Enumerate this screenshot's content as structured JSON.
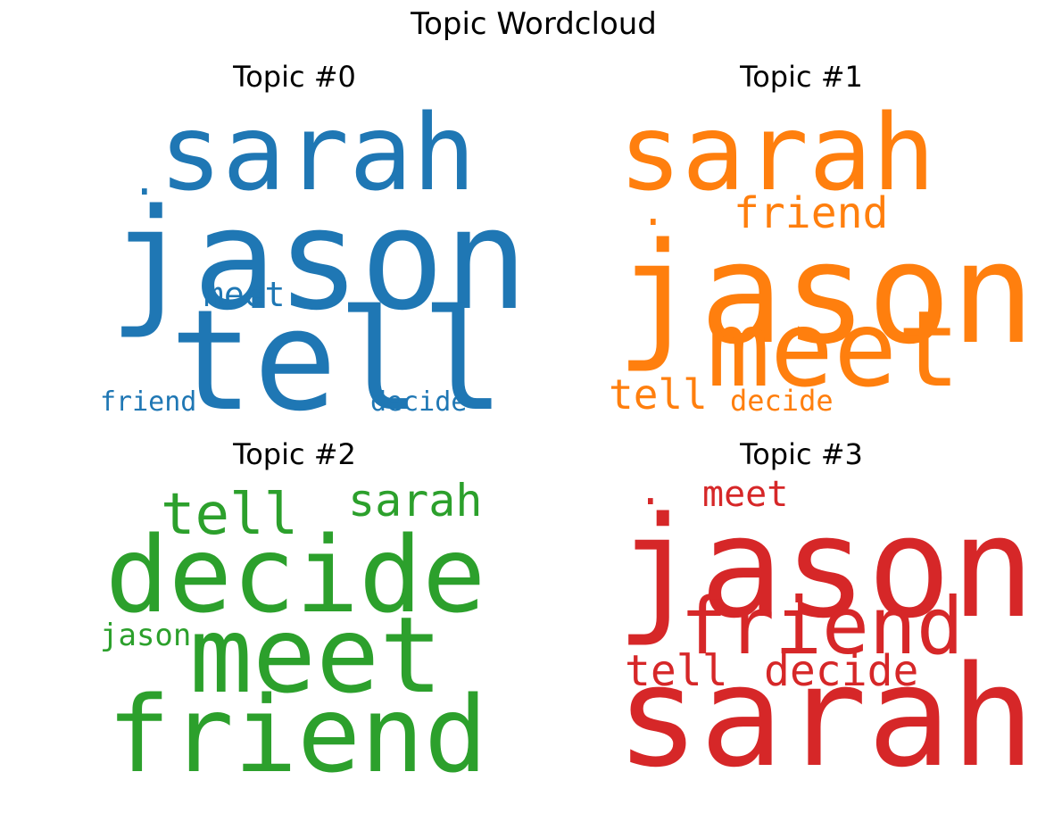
{
  "title": "Topic Wordcloud",
  "chart_data": [
    {
      "type": "wordcloud",
      "title": "Topic #0",
      "color": "#1f77b4",
      "words": [
        {
          "text": "sarah"
        },
        {
          "text": "jason"
        },
        {
          "text": "tell"
        },
        {
          "text": "meet"
        },
        {
          "text": "friend"
        },
        {
          "text": "decide"
        },
        {
          "text": "."
        }
      ]
    },
    {
      "type": "wordcloud",
      "title": "Topic #1",
      "color": "#ff7f0e",
      "words": [
        {
          "text": "sarah"
        },
        {
          "text": "friend"
        },
        {
          "text": "jason"
        },
        {
          "text": "meet"
        },
        {
          "text": "tell"
        },
        {
          "text": "decide"
        },
        {
          "text": "."
        }
      ]
    },
    {
      "type": "wordcloud",
      "title": "Topic #2",
      "color": "#2ca02c",
      "words": [
        {
          "text": "tell"
        },
        {
          "text": "sarah"
        },
        {
          "text": "decide"
        },
        {
          "text": "jason"
        },
        {
          "text": "meet"
        },
        {
          "text": "friend"
        }
      ]
    },
    {
      "type": "wordcloud",
      "title": "Topic #3",
      "color": "#d62728",
      "words": [
        {
          "text": "."
        },
        {
          "text": "meet"
        },
        {
          "text": "jason"
        },
        {
          "text": "friend"
        },
        {
          "text": "tell"
        },
        {
          "text": "decide"
        },
        {
          "text": "sarah"
        }
      ]
    }
  ]
}
